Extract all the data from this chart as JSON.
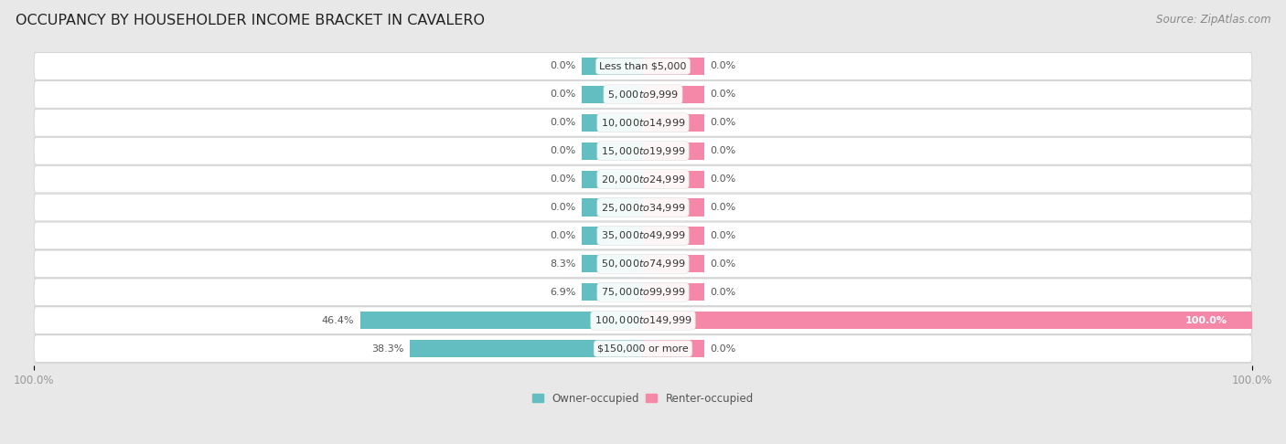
{
  "title": "OCCUPANCY BY HOUSEHOLDER INCOME BRACKET IN CAVALERO",
  "source": "Source: ZipAtlas.com",
  "categories": [
    "Less than $5,000",
    "$5,000 to $9,999",
    "$10,000 to $14,999",
    "$15,000 to $19,999",
    "$20,000 to $24,999",
    "$25,000 to $34,999",
    "$35,000 to $49,999",
    "$50,000 to $74,999",
    "$75,000 to $99,999",
    "$100,000 to $149,999",
    "$150,000 or more"
  ],
  "owner_values": [
    0.0,
    0.0,
    0.0,
    0.0,
    0.0,
    0.0,
    0.0,
    8.3,
    6.9,
    46.4,
    38.3
  ],
  "renter_values": [
    0.0,
    0.0,
    0.0,
    0.0,
    0.0,
    0.0,
    0.0,
    0.0,
    0.0,
    100.0,
    0.0
  ],
  "owner_color": "#62bec1",
  "renter_color": "#f588a8",
  "background_color": "#e8e8e8",
  "row_bg_color": "#ffffff",
  "row_alt_color": "#f5f5f5",
  "label_color": "#555555",
  "title_color": "#222222",
  "axis_label_color": "#999999",
  "stub_size": 10,
  "xlim_left": -100,
  "xlim_right": 100,
  "bar_height": 0.62,
  "title_fontsize": 11.5,
  "label_fontsize": 8.0,
  "category_fontsize": 8.0,
  "axis_fontsize": 8.5,
  "source_fontsize": 8.5
}
